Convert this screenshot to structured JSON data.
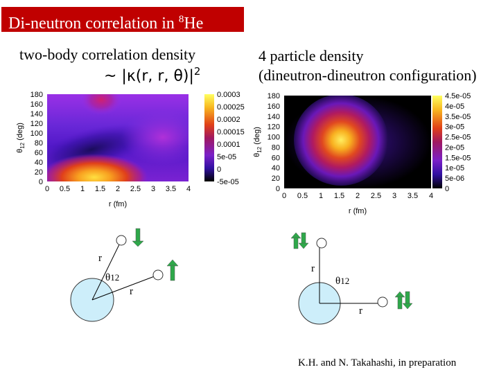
{
  "title": {
    "prefix": "Di-neutron correlation in ",
    "superscript": "8",
    "suffix": "He"
  },
  "left": {
    "header": "two-body correlation density",
    "formula_prefix": "~ |κ(r, r, θ)|",
    "formula_power": "2",
    "chart_data": {
      "type": "heatmap",
      "xlabel": "r (fm)",
      "ylabel_main": "θ",
      "ylabel_sub": "12",
      "ylabel_unit": " (deg)",
      "x_ticks": [
        "0",
        "0.5",
        "1",
        "1.5",
        "2",
        "2.5",
        "3",
        "3.5",
        "4"
      ],
      "y_ticks": [
        "0",
        "20",
        "40",
        "60",
        "80",
        "100",
        "120",
        "140",
        "160",
        "180"
      ],
      "colorbar_ticks": [
        "0.0003",
        "0.00025",
        "0.0002",
        "0.00015",
        "0.0001",
        "5e-05",
        "0",
        "-5e-05"
      ],
      "xlim": [
        0,
        4
      ],
      "ylim": [
        0,
        180
      ],
      "zlim": [
        -5e-05,
        0.0003
      ]
    }
  },
  "right": {
    "header_line1": "4 particle density",
    "header_line2": "(dineutron-dineutron configuration)",
    "chart_data": {
      "type": "heatmap",
      "xlabel": "r (fm)",
      "ylabel_main": "θ",
      "ylabel_sub": "12",
      "ylabel_unit": " (deg)",
      "x_ticks": [
        "0",
        "0.5",
        "1",
        "1.5",
        "2",
        "2.5",
        "3",
        "3.5",
        "4"
      ],
      "y_ticks": [
        "0",
        "20",
        "40",
        "60",
        "80",
        "100",
        "120",
        "140",
        "160",
        "180"
      ],
      "colorbar_ticks": [
        "4.5e-05",
        "4e-05",
        "3.5e-05",
        "3e-05",
        "2.5e-05",
        "2e-05",
        "1.5e-05",
        "1e-05",
        "5e-06",
        "0"
      ],
      "xlim": [
        0,
        4
      ],
      "ylim": [
        0,
        180
      ],
      "zlim": [
        0,
        4.5e-05
      ]
    }
  },
  "diagram_left": {
    "r_top": "r",
    "theta": "θ",
    "theta_sub": "12",
    "r_bottom": "r"
  },
  "diagram_right": {
    "r_top": "r",
    "theta": "θ",
    "theta_sub": "12",
    "r_bottom": "r"
  },
  "colors": {
    "title_bg": "#c00000",
    "core_fill": "#cdeefa",
    "arrow": "#2ea84a"
  },
  "credit": "K.H. and N. Takahashi, in preparation"
}
